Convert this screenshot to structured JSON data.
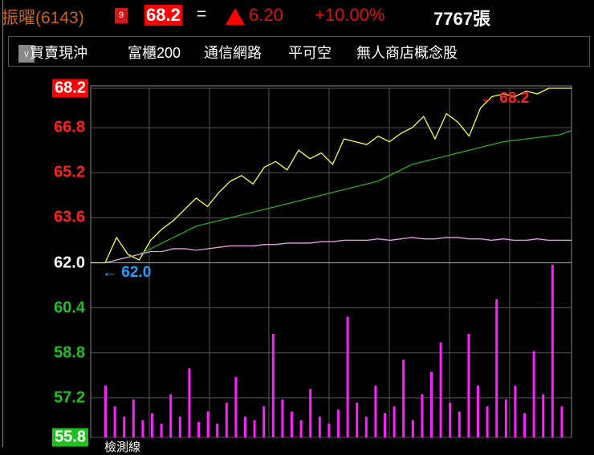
{
  "header": {
    "name": "振曜(6143)",
    "badge": "9",
    "price": "68.2",
    "eq": "=",
    "change": "6.20",
    "percent": "+10.00%",
    "volume": "7767張"
  },
  "tags": {
    "dropdown_icon": "chevron-down-icon",
    "items": [
      "買賣現沖",
      "富櫃200",
      "通信網路",
      "平可空",
      "無人商店概念股"
    ]
  },
  "colors": {
    "up": "#ff0000",
    "down": "#20c020",
    "price_line": "#ffff40",
    "avg_line": "#20b020",
    "pink_line": "#e0a0e0",
    "volume": "#ff20ff"
  },
  "chart_data": {
    "type": "line",
    "ylim": [
      55.8,
      68.2
    ],
    "y_ticks": [
      {
        "label": "68.2",
        "value": 68.2,
        "color": "#ff2020",
        "boxed": true
      },
      {
        "label": "66.8",
        "value": 66.8,
        "color": "#ff2020"
      },
      {
        "label": "65.2",
        "value": 65.2,
        "color": "#ff2020"
      },
      {
        "label": "63.6",
        "value": 63.6,
        "color": "#ff2020"
      },
      {
        "label": "62.0",
        "value": 62.0,
        "color": "#ffffff"
      },
      {
        "label": "60.4",
        "value": 60.4,
        "color": "#20c020"
      },
      {
        "label": "58.8",
        "value": 58.8,
        "color": "#20c020"
      },
      {
        "label": "57.2",
        "value": 57.2,
        "color": "#20c020"
      },
      {
        "label": "55.8",
        "value": 55.8,
        "color": "#ffffff",
        "boxed": true
      }
    ],
    "high_marker": "68.2",
    "low_marker": "62.0",
    "series": [
      {
        "values": [
          62.0,
          62.9,
          62.3,
          62.1,
          62.8,
          63.2,
          63.5,
          63.9,
          64.3,
          64.0,
          64.5,
          64.9,
          65.1,
          64.8,
          65.4,
          65.6,
          65.3,
          66.0,
          65.7,
          65.9,
          65.5,
          66.4,
          66.3,
          66.2,
          66.5,
          66.3,
          66.6,
          66.8,
          67.2,
          66.4,
          67.3,
          67.0,
          66.5,
          67.5,
          67.9,
          68.0,
          67.9,
          68.1,
          68.0,
          68.2,
          68.2,
          68.2
        ]
      },
      {
        "values": [
          62.0,
          62.1,
          62.2,
          62.3,
          62.5,
          62.7,
          62.9,
          63.1,
          63.3,
          63.4,
          63.5,
          63.6,
          63.7,
          63.8,
          63.9,
          64.0,
          64.1,
          64.2,
          64.3,
          64.4,
          64.5,
          64.6,
          64.7,
          64.8,
          64.9,
          65.1,
          65.3,
          65.5,
          65.6,
          65.7,
          65.8,
          65.9,
          66.0,
          66.1,
          66.2,
          66.3,
          66.35,
          66.4,
          66.45,
          66.5,
          66.55,
          66.7
        ]
      },
      {
        "values": [
          62.0,
          62.1,
          62.2,
          62.3,
          62.4,
          62.4,
          62.5,
          62.5,
          62.45,
          62.5,
          62.55,
          62.6,
          62.6,
          62.6,
          62.65,
          62.65,
          62.7,
          62.7,
          62.7,
          62.75,
          62.75,
          62.8,
          62.8,
          62.8,
          62.85,
          62.8,
          62.85,
          62.9,
          62.85,
          62.85,
          62.9,
          62.9,
          62.85,
          62.85,
          62.8,
          62.85,
          62.8,
          62.8,
          62.85,
          62.8,
          62.8,
          62.8
        ]
      }
    ],
    "volume": [
      30,
      18,
      12,
      22,
      10,
      14,
      8,
      25,
      12,
      40,
      9,
      15,
      8,
      20,
      35,
      12,
      10,
      18,
      60,
      22,
      15,
      10,
      28,
      12,
      8,
      16,
      70,
      20,
      12,
      30,
      14,
      18,
      45,
      10,
      25,
      38,
      55,
      20,
      15,
      60,
      30,
      18,
      80,
      22,
      30,
      14,
      50,
      25,
      100,
      18
    ]
  },
  "footer": {
    "label": "檢測線"
  }
}
